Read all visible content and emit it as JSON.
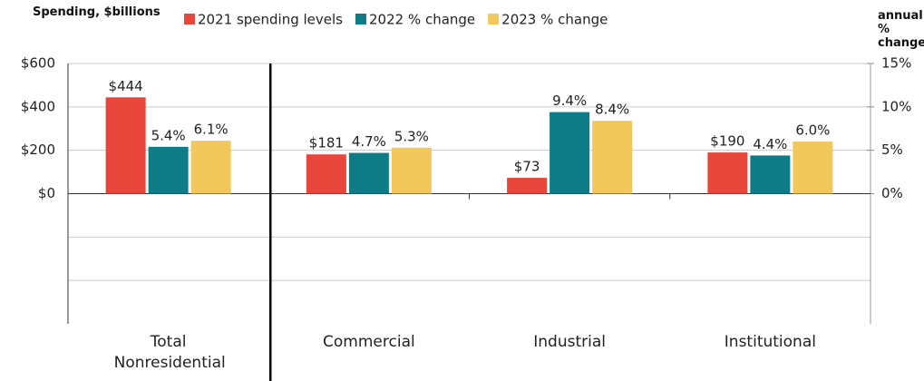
{
  "chart_data": {
    "type": "bar",
    "y_label": "Spending, $billions",
    "y2_label": "annual % change",
    "categories": [
      "Total Nonresidential",
      "Commercial",
      "Industrial",
      "Institutional"
    ],
    "series": [
      {
        "name": "2021 spending levels",
        "color": "#e8463a",
        "values": [
          444,
          181,
          73,
          190
        ],
        "value_labels": [
          "$444",
          "$181",
          "$73",
          "$190"
        ]
      },
      {
        "name": "2022 % change",
        "color": "#0e7c86",
        "axis": "y2",
        "values": [
          5.4,
          4.7,
          9.4,
          4.4
        ],
        "value_labels": [
          "5.4%",
          "4.7%",
          "9.4%",
          "4.4%"
        ]
      },
      {
        "name": "2023 % change",
        "color": "#f2c75c",
        "axis": "y2",
        "values": [
          6.1,
          5.3,
          8.4,
          6.0
        ],
        "value_labels": [
          "6.1%",
          "5.3%",
          "8.4%",
          "6.0%"
        ]
      }
    ],
    "ylim": [
      -600,
      600
    ],
    "yticks": [
      {
        "value": 0,
        "label": "$0"
      },
      {
        "value": 200,
        "label": "$200"
      },
      {
        "value": 400,
        "label": "$400"
      },
      {
        "value": 600,
        "label": "$600"
      }
    ],
    "y2lim": [
      -15,
      15
    ],
    "y2ticks": [
      {
        "value": 0,
        "label": "0%"
      },
      {
        "value": 5,
        "label": "5%"
      },
      {
        "value": 10,
        "label": "10%"
      },
      {
        "value": 15,
        "label": "15%"
      }
    ],
    "grid": true,
    "legend": "top"
  }
}
